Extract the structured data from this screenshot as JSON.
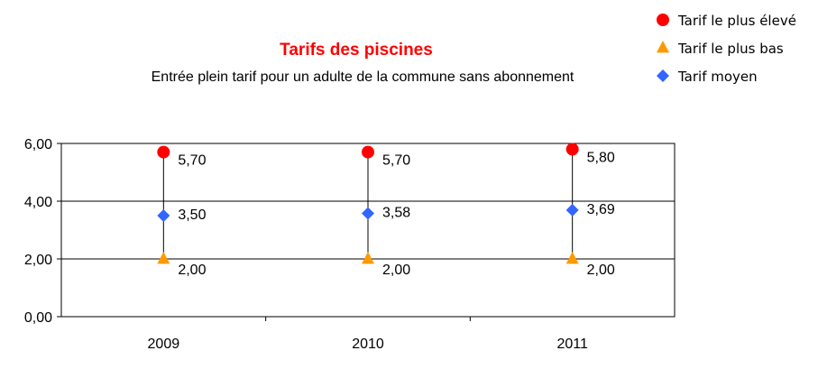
{
  "chart_data": {
    "type": "scatter",
    "title": "Tarifs des piscines",
    "subtitle": "Entrée plein tarif pour un adulte de la commune sans abonnement",
    "categories": [
      "2009",
      "2010",
      "2011"
    ],
    "series": [
      {
        "name": "Tarif le plus élevé",
        "marker": "circle",
        "color": "#ff0000",
        "values": [
          5.7,
          5.7,
          5.8
        ],
        "labels": [
          "5,70",
          "5,70",
          "5,80"
        ]
      },
      {
        "name": "Tarif le plus bas",
        "marker": "triangle",
        "color": "#ff9900",
        "values": [
          2.0,
          2.0,
          2.0
        ],
        "labels": [
          "2,00",
          "2,00",
          "2,00"
        ]
      },
      {
        "name": "Tarif moyen",
        "marker": "diamond",
        "color": "#3366ff",
        "values": [
          3.5,
          3.58,
          3.69
        ],
        "labels": [
          "3,50",
          "3,58",
          "3,69"
        ]
      }
    ],
    "y_ticks": [
      {
        "value": 0,
        "label": "0,00"
      },
      {
        "value": 2,
        "label": "2,00"
      },
      {
        "value": 4,
        "label": "4,00"
      },
      {
        "value": 6,
        "label": "6,00"
      }
    ],
    "ylim": [
      0,
      6
    ],
    "grid": true,
    "high_low_lines": true,
    "legend_position": "top-right"
  }
}
